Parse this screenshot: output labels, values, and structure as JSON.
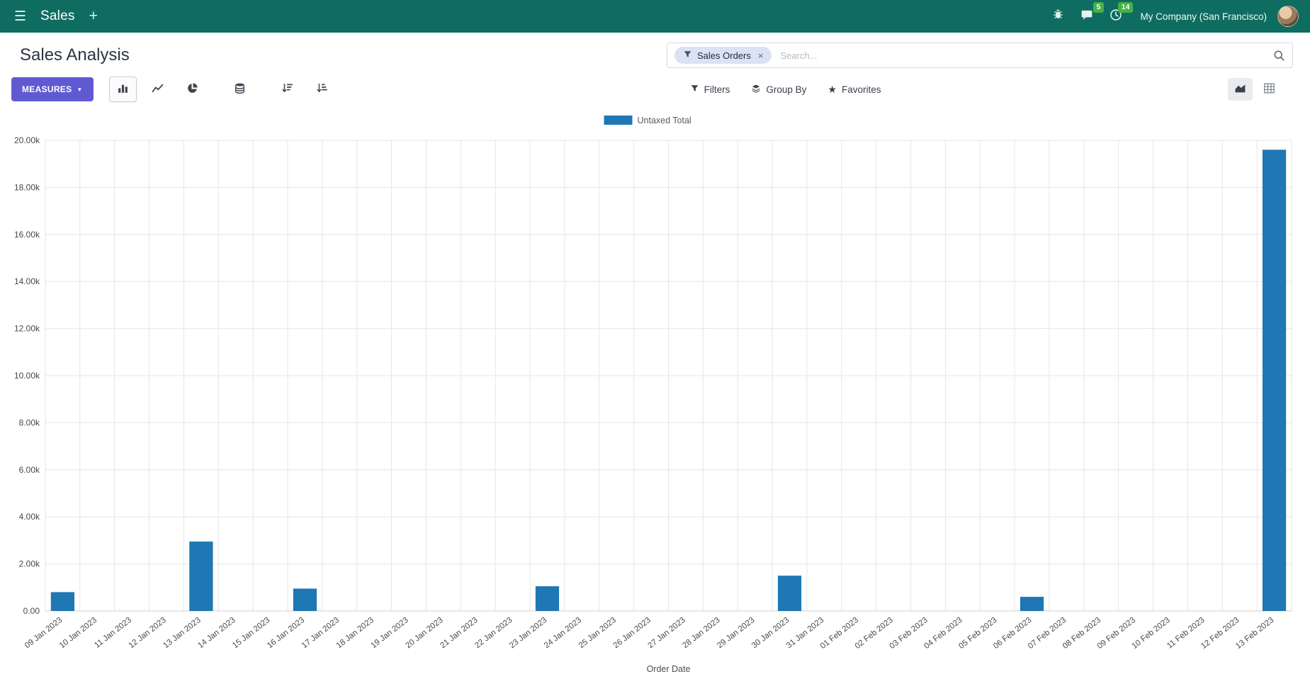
{
  "colors": {
    "navbar_bg": "#0e6d60",
    "primary_button": "#5f5ad2",
    "badge_green": "#44b244",
    "bar_blue": "#1f77b4",
    "grid_line": "#e6e6e6",
    "axis_text": "#45494e"
  },
  "icons": {
    "hamburger": "☰",
    "plus": "+",
    "caret_down": "▼",
    "close": "×",
    "star": "★"
  },
  "navbar": {
    "app_name": "Sales",
    "messages_badge": "5",
    "activities_badge": "14",
    "company": "My Company (San Francisco)"
  },
  "page": {
    "title": "Sales Analysis"
  },
  "search": {
    "facet_label": "Sales Orders",
    "placeholder": "Search..."
  },
  "toolbar": {
    "measures": "MEASURES",
    "filters": "Filters",
    "group_by": "Group By",
    "favorites": "Favorites"
  },
  "chart_data": {
    "type": "bar",
    "title": "",
    "xlabel": "Order Date",
    "ylabel": "",
    "legend_position": "top-center",
    "grid": true,
    "ylim": [
      0,
      20000
    ],
    "ytick_step": 2000,
    "ytick_labels": [
      "0.00",
      "2.00k",
      "4.00k",
      "6.00k",
      "8.00k",
      "10.00k",
      "12.00k",
      "14.00k",
      "16.00k",
      "18.00k",
      "20.00k"
    ],
    "categories": [
      "09 Jan 2023",
      "10 Jan 2023",
      "11 Jan 2023",
      "12 Jan 2023",
      "13 Jan 2023",
      "14 Jan 2023",
      "15 Jan 2023",
      "16 Jan 2023",
      "17 Jan 2023",
      "18 Jan 2023",
      "19 Jan 2023",
      "20 Jan 2023",
      "21 Jan 2023",
      "22 Jan 2023",
      "23 Jan 2023",
      "24 Jan 2023",
      "25 Jan 2023",
      "26 Jan 2023",
      "27 Jan 2023",
      "28 Jan 2023",
      "29 Jan 2023",
      "30 Jan 2023",
      "31 Jan 2023",
      "01 Feb 2023",
      "02 Feb 2023",
      "03 Feb 2023",
      "04 Feb 2023",
      "05 Feb 2023",
      "06 Feb 2023",
      "07 Feb 2023",
      "08 Feb 2023",
      "09 Feb 2023",
      "10 Feb 2023",
      "11 Feb 2023",
      "12 Feb 2023",
      "13 Feb 2023"
    ],
    "series": [
      {
        "name": "Untaxed Total",
        "color": "#1f77b4",
        "values": [
          800,
          0,
          0,
          0,
          2950,
          0,
          0,
          950,
          0,
          0,
          0,
          0,
          0,
          0,
          1050,
          0,
          0,
          0,
          0,
          0,
          0,
          1500,
          0,
          0,
          0,
          0,
          0,
          0,
          600,
          0,
          0,
          0,
          0,
          0,
          0,
          19600
        ]
      }
    ]
  }
}
